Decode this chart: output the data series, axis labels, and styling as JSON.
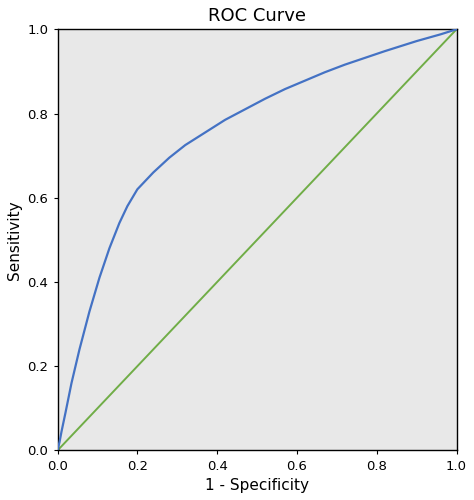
{
  "title": "ROC Curve",
  "xlabel": "1 - Specificity",
  "ylabel": "Sensitivity",
  "xlim": [
    0.0,
    1.0
  ],
  "ylim": [
    0.0,
    1.0
  ],
  "xticks": [
    0.0,
    0.2,
    0.4,
    0.6,
    0.8,
    1.0
  ],
  "yticks": [
    0.0,
    0.2,
    0.4,
    0.6,
    0.8,
    1.0
  ],
  "roc_color": "#4472C4",
  "diagonal_color": "#70AD47",
  "background_color": "#E8E8E8",
  "roc_linewidth": 1.6,
  "diagonal_linewidth": 1.4,
  "title_fontsize": 13,
  "axis_label_fontsize": 11,
  "tick_fontsize": 9.5,
  "roc_x": [
    0.0,
    0.005,
    0.01,
    0.02,
    0.035,
    0.055,
    0.08,
    0.105,
    0.13,
    0.155,
    0.175,
    0.2,
    0.24,
    0.28,
    0.32,
    0.37,
    0.42,
    0.47,
    0.52,
    0.57,
    0.62,
    0.67,
    0.72,
    0.77,
    0.82,
    0.86,
    0.9,
    0.93,
    0.96,
    0.98,
    1.0
  ],
  "roc_y": [
    0.0,
    0.02,
    0.045,
    0.09,
    0.16,
    0.24,
    0.33,
    0.41,
    0.48,
    0.54,
    0.58,
    0.62,
    0.66,
    0.695,
    0.725,
    0.755,
    0.785,
    0.81,
    0.835,
    0.858,
    0.878,
    0.898,
    0.916,
    0.932,
    0.948,
    0.96,
    0.972,
    0.98,
    0.988,
    0.994,
    1.0
  ]
}
